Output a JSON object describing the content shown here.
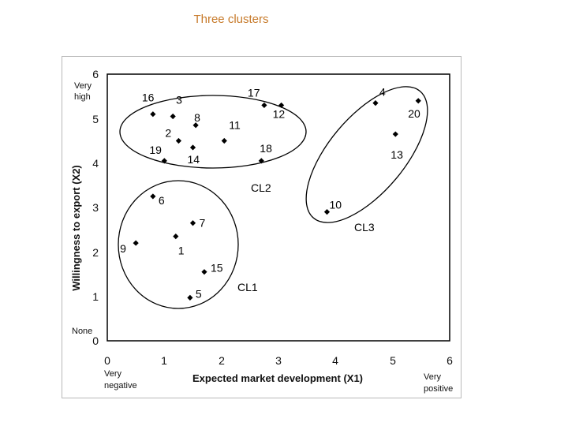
{
  "slide": {
    "title": "Three clusters"
  },
  "chart_data": {
    "type": "scatter",
    "title": "",
    "xlabel": "Expected market development (X1)",
    "ylabel": "Willingness to export (X2)",
    "xlim": [
      0,
      6
    ],
    "ylim": [
      0,
      6
    ],
    "xticks": [
      "0",
      "1",
      "2",
      "3",
      "4",
      "5",
      "6"
    ],
    "yticks": [
      "0",
      "1",
      "2",
      "3",
      "4",
      "5",
      "6"
    ],
    "x_anchor_low": [
      "Very",
      "negative"
    ],
    "x_anchor_high": [
      "Very",
      "positive"
    ],
    "y_anchor_high": [
      "Very",
      "high"
    ],
    "y_anchor_low": "None",
    "points": [
      {
        "id": "1",
        "x": 1.2,
        "y": 2.35
      },
      {
        "id": "2",
        "x": 1.25,
        "y": 4.5
      },
      {
        "id": "3",
        "x": 1.15,
        "y": 5.05
      },
      {
        "id": "4",
        "x": 4.7,
        "y": 5.35
      },
      {
        "id": "5",
        "x": 1.45,
        "y": 0.97
      },
      {
        "id": "6",
        "x": 0.8,
        "y": 3.25
      },
      {
        "id": "7",
        "x": 1.5,
        "y": 2.65
      },
      {
        "id": "8",
        "x": 1.55,
        "y": 4.85
      },
      {
        "id": "9",
        "x": 0.5,
        "y": 2.2
      },
      {
        "id": "10",
        "x": 3.85,
        "y": 2.9
      },
      {
        "id": "11",
        "x": 2.05,
        "y": 4.5
      },
      {
        "id": "12",
        "x": 3.05,
        "y": 5.3
      },
      {
        "id": "13",
        "x": 5.05,
        "y": 4.65
      },
      {
        "id": "14",
        "x": 1.5,
        "y": 4.35
      },
      {
        "id": "15",
        "x": 1.7,
        "y": 1.55
      },
      {
        "id": "16",
        "x": 0.8,
        "y": 5.1
      },
      {
        "id": "17",
        "x": 2.75,
        "y": 5.3
      },
      {
        "id": "18",
        "x": 2.7,
        "y": 4.05
      },
      {
        "id": "19",
        "x": 1.0,
        "y": 4.05
      },
      {
        "id": "20",
        "x": 5.45,
        "y": 5.4
      }
    ],
    "clusters": [
      {
        "name": "CL1",
        "members": [
          "1",
          "5",
          "6",
          "7",
          "9",
          "15"
        ]
      },
      {
        "name": "CL2",
        "members": [
          "2",
          "3",
          "8",
          "11",
          "12",
          "14",
          "16",
          "17",
          "18",
          "19"
        ]
      },
      {
        "name": "CL3",
        "members": [
          "4",
          "10",
          "13",
          "20"
        ]
      }
    ],
    "grid": false,
    "colors": {
      "marker": "#000000",
      "title": "#c77a2a"
    }
  }
}
